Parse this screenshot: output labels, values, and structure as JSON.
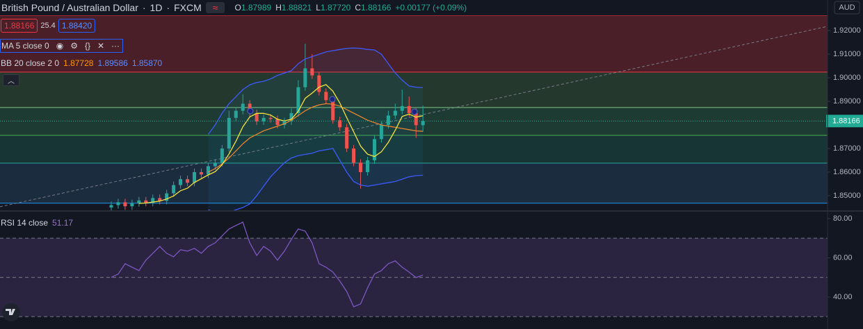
{
  "header": {
    "title": "British Pound / Australian Dollar",
    "interval": "1D",
    "source": "FXCM",
    "ohlc_letters": [
      "O",
      "H",
      "L",
      "C"
    ],
    "ohlc_values": [
      "1.87989",
      "1.88821",
      "1.87720",
      "1.88166"
    ],
    "change": "+0.00177 (+0.09%)",
    "sell": "1.88166",
    "spread": "25.4",
    "buy": "1.88420",
    "currency": "AUD"
  },
  "chart_data": [
    {
      "type": "candlestick",
      "ma_label": "MA 5 close 0",
      "bb_label": "BB 20 close 2 0",
      "bb_value_labels": [
        "1.87728",
        "1.89586",
        "1.85870"
      ],
      "up_color": "#26a69a",
      "down_color": "#ef5350",
      "open": [
        1.845,
        1.846,
        1.8472,
        1.8455,
        1.8468,
        1.848,
        1.847,
        1.849,
        1.8478,
        1.851,
        1.8545,
        1.857,
        1.8555,
        1.86,
        1.859,
        1.8625,
        1.864,
        1.87,
        1.883,
        1.886,
        1.889,
        1.885,
        1.8815,
        1.883,
        1.8825,
        1.88,
        1.8815,
        1.885,
        1.896,
        1.904,
        1.901,
        1.894,
        1.8905,
        1.882,
        1.879,
        1.87,
        1.864,
        1.86,
        1.865,
        1.874,
        1.88,
        1.884,
        1.886,
        1.888,
        1.885,
        1.87989
      ],
      "high": [
        1.8475,
        1.8487,
        1.8487,
        1.8483,
        1.8495,
        1.8495,
        1.8505,
        1.8505,
        1.8525,
        1.856,
        1.8585,
        1.8585,
        1.8615,
        1.8615,
        1.864,
        1.8655,
        1.8715,
        1.886,
        1.8875,
        1.893,
        1.8905,
        1.8865,
        1.8845,
        1.8845,
        1.884,
        1.883,
        1.887,
        1.899,
        1.9145,
        1.91,
        1.9025,
        1.8955,
        1.892,
        1.8835,
        1.8805,
        1.8715,
        1.8655,
        1.8665,
        1.8755,
        1.8815,
        1.886,
        1.889,
        1.895,
        1.892,
        1.887,
        1.88821
      ],
      "low": [
        1.8435,
        1.8445,
        1.844,
        1.844,
        1.8453,
        1.8455,
        1.8455,
        1.8463,
        1.8463,
        1.8495,
        1.853,
        1.854,
        1.854,
        1.8575,
        1.8575,
        1.861,
        1.8625,
        1.8685,
        1.8815,
        1.8845,
        1.8835,
        1.88,
        1.88,
        1.881,
        1.8785,
        1.8785,
        1.88,
        1.8835,
        1.8945,
        1.8995,
        1.8925,
        1.889,
        1.8805,
        1.8775,
        1.8685,
        1.8625,
        1.853,
        1.8585,
        1.8635,
        1.8725,
        1.8785,
        1.8825,
        1.8845,
        1.8835,
        1.8745,
        1.8772
      ],
      "close": [
        1.846,
        1.8472,
        1.8455,
        1.8468,
        1.848,
        1.847,
        1.849,
        1.8478,
        1.851,
        1.8545,
        1.857,
        1.8555,
        1.86,
        1.859,
        1.8625,
        1.864,
        1.87,
        1.883,
        1.886,
        1.889,
        1.885,
        1.8815,
        1.883,
        1.8825,
        1.88,
        1.8815,
        1.885,
        1.896,
        1.904,
        1.901,
        1.894,
        1.8905,
        1.882,
        1.879,
        1.87,
        1.864,
        1.86,
        1.865,
        1.874,
        1.88,
        1.884,
        1.886,
        1.888,
        1.885,
        1.87989,
        1.88166
      ],
      "ma": {
        "color": "#f7e43a",
        "values": [
          null,
          null,
          null,
          null,
          1.8467,
          1.8469,
          1.8473,
          1.8477,
          1.8486,
          1.8499,
          1.8521,
          1.8532,
          1.8556,
          1.8572,
          1.8588,
          1.8602,
          1.8631,
          1.8677,
          1.8731,
          1.8792,
          1.8834,
          1.8849,
          1.8849,
          1.8842,
          1.8824,
          1.8817,
          1.8824,
          1.8858,
          1.8913,
          1.8935,
          1.896,
          1.8971,
          1.8943,
          1.8893,
          1.8831,
          1.8771,
          1.871,
          1.8676,
          1.8666,
          1.8686,
          1.8726,
          1.8778,
          1.8836,
          1.8846,
          1.8833,
          1.8839
        ]
      },
      "bb_basis": {
        "color": "#e8842e",
        "values": [
          null,
          null,
          null,
          null,
          null,
          null,
          null,
          null,
          null,
          null,
          null,
          null,
          null,
          null,
          1.86,
          1.8615,
          1.8635,
          1.866,
          1.869,
          1.872,
          1.8745,
          1.876,
          1.8775,
          1.8785,
          1.8795,
          1.8805,
          1.882,
          1.884,
          1.886,
          1.8875,
          1.8885,
          1.889,
          1.8888,
          1.888,
          1.8865,
          1.885,
          1.8835,
          1.882,
          1.881,
          1.88,
          1.8795,
          1.879,
          1.8785,
          1.878,
          1.8775,
          1.87728
        ]
      },
      "bb_upper": {
        "color": "#3d5afe",
        "values": [
          null,
          null,
          null,
          null,
          null,
          null,
          null,
          null,
          null,
          null,
          null,
          null,
          null,
          null,
          1.876,
          1.88,
          1.885,
          1.889,
          1.892,
          1.895,
          1.897,
          1.898,
          1.8985,
          1.8995,
          1.901,
          1.902,
          1.903,
          1.906,
          1.908,
          1.909,
          1.91,
          1.911,
          1.9115,
          1.912,
          1.9125,
          1.9126,
          1.9125,
          1.912,
          1.9118,
          1.91,
          1.906,
          1.902,
          1.899,
          1.8965,
          1.896,
          1.89586
        ]
      },
      "bb_lower": {
        "color": "#3d5afe",
        "values": [
          null,
          null,
          null,
          null,
          null,
          null,
          null,
          null,
          null,
          null,
          null,
          null,
          null,
          null,
          1.844,
          1.843,
          1.842,
          1.843,
          1.844,
          1.845,
          1.8465,
          1.85,
          1.854,
          1.858,
          1.861,
          1.864,
          1.866,
          1.867,
          1.8675,
          1.868,
          1.869,
          1.8695,
          1.87,
          1.865,
          1.86,
          1.856,
          1.8545,
          1.854,
          1.8545,
          1.855,
          1.8555,
          1.856,
          1.857,
          1.858,
          1.8585,
          1.8587
        ]
      },
      "ylim": [
        1.8438,
        1.9265
      ],
      "yticks": [
        {
          "value": 1.92,
          "label": "1.92000"
        },
        {
          "value": 1.91,
          "label": "1.91000"
        },
        {
          "value": 1.9,
          "label": "1.90000"
        },
        {
          "value": 1.89,
          "label": "1.89000"
        },
        {
          "value": 1.88,
          "label": "1.88000"
        },
        {
          "value": 1.87,
          "label": "1.87000"
        },
        {
          "value": 1.86,
          "label": "1.86000"
        },
        {
          "value": 1.85,
          "label": "1.85000"
        }
      ],
      "levels": [
        {
          "value": 1.9265,
          "color": "#f23645"
        },
        {
          "value": 1.9024,
          "color": "#f23645"
        },
        {
          "value": 1.8874,
          "color": "#81c784"
        },
        {
          "value": 1.8756,
          "color": "#4caf50"
        },
        {
          "value": 1.8638,
          "color": "#26a69a"
        },
        {
          "value": 1.8468,
          "color": "#2196f3"
        }
      ],
      "zone_colors": [
        "#4a1f27",
        "#24382e",
        "#1d3b33",
        "#173534",
        "#1b2c3f"
      ],
      "trendline": {
        "color": "#787b86",
        "values": [
          1.8453,
          1.9218
        ]
      },
      "last_price_label": "1.88166",
      "last_price_color": "#22ab94"
    },
    {
      "type": "line",
      "title": "RSI 14 close",
      "value_label": "51.17",
      "color": "#7e57c2",
      "values": [
        50,
        51.7,
        57,
        55.2,
        53.5,
        58.8,
        62.3,
        65.8,
        62.3,
        60.5,
        64.1,
        63.4,
        64.8,
        62.3,
        65.8,
        67.6,
        71.2,
        74.7,
        76.5,
        78.2,
        67.6,
        61.2,
        65.8,
        63.4,
        58.8,
        63.4,
        69.4,
        74.7,
        73.6,
        67.6,
        57,
        55.2,
        52.7,
        48.1,
        42.8,
        35,
        36.5,
        44.6,
        51.7,
        53.5,
        57,
        58.4,
        55.2,
        52.7,
        49.9,
        51.17
      ],
      "ylim": [
        25.1,
        83.5
      ],
      "yticks": [
        {
          "value": 80,
          "label": "80.00"
        },
        {
          "value": 60,
          "label": "60.00"
        },
        {
          "value": 40,
          "label": "40.00"
        }
      ],
      "levels": [
        70,
        50,
        30
      ],
      "band_color": "#2a2440"
    }
  ]
}
